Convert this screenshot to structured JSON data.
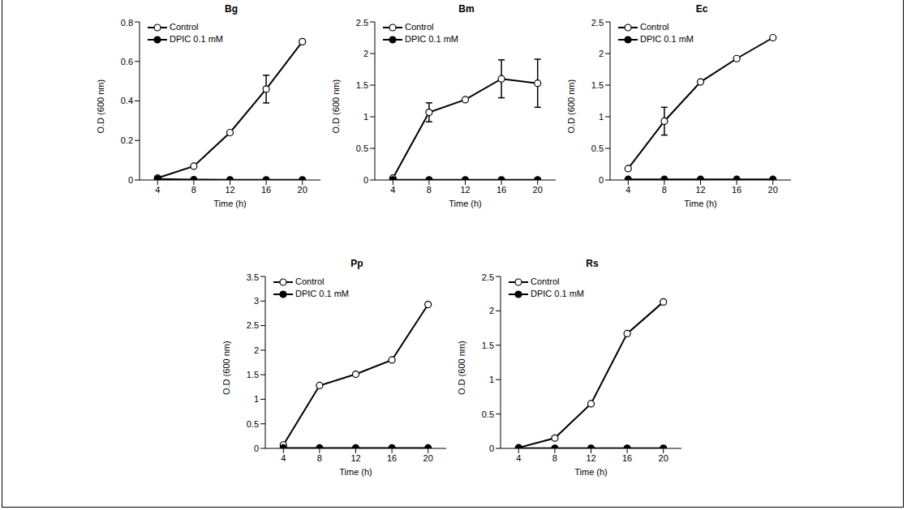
{
  "chart_data": [
    {
      "type": "line",
      "title": "Bg",
      "x": [
        4,
        8,
        12,
        16,
        20
      ],
      "xlim": [
        2,
        22
      ],
      "xticks": [
        4,
        8,
        12,
        16,
        20
      ],
      "ylim": [
        0,
        0.8
      ],
      "yticks": [
        0,
        0.2,
        0.4,
        0.6,
        0.8
      ],
      "x_label": "Time (h)",
      "y_label": "O.D (600 nm)",
      "legend": "upper left",
      "series": [
        {
          "name": "Control",
          "color": "#000000",
          "marker": "open_circle",
          "values": [
            0.01,
            0.07,
            0.24,
            0.46,
            0.7
          ],
          "errors": [
            null,
            null,
            null,
            0.07,
            null
          ]
        },
        {
          "name": "DPIC 0.1 mM",
          "color": "#000000",
          "marker": "circle",
          "values": [
            0.005,
            0.002,
            0.001,
            0.001,
            0.001
          ]
        }
      ]
    },
    {
      "type": "line",
      "title": "Bm",
      "x": [
        4,
        8,
        12,
        16,
        20
      ],
      "xlim": [
        2,
        22
      ],
      "xticks": [
        4,
        8,
        12,
        16,
        20
      ],
      "ylim": [
        0,
        2.5
      ],
      "yticks": [
        0,
        0.5,
        1,
        1.5,
        2,
        2.5
      ],
      "x_label": "Time (h)",
      "y_label": "O.D (600 nm)",
      "legend": "upper left",
      "series": [
        {
          "name": "Control",
          "color": "#000000",
          "marker": "open_circle",
          "values": [
            0.03,
            1.07,
            1.27,
            1.6,
            1.53
          ],
          "errors": [
            null,
            0.15,
            null,
            0.3,
            0.38
          ]
        },
        {
          "name": "DPIC 0.1 mM",
          "color": "#000000",
          "marker": "circle",
          "values": [
            0.003,
            0.003,
            0.003,
            0.003,
            0.003
          ]
        }
      ]
    },
    {
      "type": "line",
      "title": "Ec",
      "x": [
        4,
        8,
        12,
        16,
        20
      ],
      "xlim": [
        2,
        22
      ],
      "xticks": [
        4,
        8,
        12,
        16,
        20
      ],
      "ylim": [
        0,
        2.5
      ],
      "yticks": [
        0,
        0.5,
        1,
        1.5,
        2,
        2.5
      ],
      "x_label": "Time (h)",
      "y_label": "O.D (600 nm)",
      "legend": "upper left",
      "series": [
        {
          "name": "Control",
          "color": "#000000",
          "marker": "open_circle",
          "values": [
            0.18,
            0.93,
            1.55,
            1.92,
            2.25
          ],
          "errors": [
            null,
            0.22,
            null,
            null,
            null
          ]
        },
        {
          "name": "DPIC 0.1 mM",
          "color": "#000000",
          "marker": "circle",
          "values": [
            0.01,
            0.01,
            0.01,
            0.01,
            0.01
          ]
        }
      ]
    },
    {
      "type": "line",
      "title": "Pp",
      "x": [
        4,
        8,
        12,
        16,
        20
      ],
      "xlim": [
        2,
        22
      ],
      "xticks": [
        4,
        8,
        12,
        16,
        20
      ],
      "ylim": [
        0,
        3.5
      ],
      "yticks": [
        0,
        0.5,
        1,
        1.5,
        2,
        2.5,
        3,
        3.5
      ],
      "x_label": "Time (h)",
      "y_label": "O.D (600 nm)",
      "legend": "upper left",
      "series": [
        {
          "name": "Control",
          "color": "#000000",
          "marker": "open_circle",
          "values": [
            0.07,
            1.28,
            1.51,
            1.8,
            2.93
          ]
        },
        {
          "name": "DPIC 0.1 mM",
          "color": "#000000",
          "marker": "circle",
          "values": [
            0.01,
            0.01,
            0.01,
            0.01,
            0.01
          ]
        }
      ]
    },
    {
      "type": "line",
      "title": "Rs",
      "x": [
        4,
        8,
        12,
        16,
        20
      ],
      "xlim": [
        2,
        22
      ],
      "xticks": [
        4,
        8,
        12,
        16,
        20
      ],
      "ylim": [
        0,
        2.5
      ],
      "yticks": [
        0,
        0.5,
        1,
        1.5,
        2,
        2.5
      ],
      "x_label": "Time (h)",
      "y_label": "O.D (600 nm)",
      "legend": "upper left",
      "series": [
        {
          "name": "Control",
          "color": "#000000",
          "marker": "open_circle",
          "values": [
            0.01,
            0.15,
            0.65,
            1.67,
            2.13
          ]
        },
        {
          "name": "DPIC 0.1 mM",
          "color": "#000000",
          "marker": "circle",
          "values": [
            0.003,
            0.003,
            0.003,
            0.003,
            0.003
          ]
        }
      ]
    }
  ]
}
